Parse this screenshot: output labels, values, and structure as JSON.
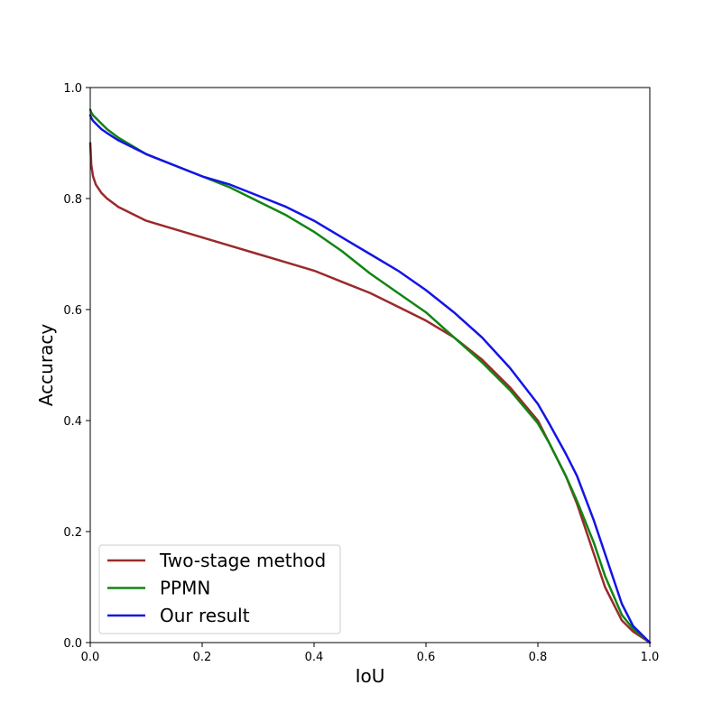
{
  "chart_data": {
    "type": "line",
    "title": "",
    "xlabel": "IoU",
    "ylabel": "Accuracy",
    "xlim": [
      0.0,
      1.0
    ],
    "ylim": [
      0.0,
      1.0
    ],
    "x_ticks": [
      "0.0",
      "0.2",
      "0.4",
      "0.6",
      "0.8",
      "1.0"
    ],
    "y_ticks": [
      "0.0",
      "0.2",
      "0.4",
      "0.6",
      "0.8",
      "1.0"
    ],
    "grid": false,
    "legend_position": "lower-left",
    "series": [
      {
        "name": "Two-stage method",
        "color": "#9b2a2a",
        "x": [
          0.0,
          0.002,
          0.005,
          0.01,
          0.02,
          0.03,
          0.05,
          0.07,
          0.1,
          0.15,
          0.2,
          0.25,
          0.3,
          0.35,
          0.4,
          0.45,
          0.5,
          0.55,
          0.6,
          0.65,
          0.7,
          0.75,
          0.8,
          0.82,
          0.85,
          0.87,
          0.9,
          0.92,
          0.95,
          0.97,
          1.0
        ],
        "y": [
          0.9,
          0.86,
          0.84,
          0.825,
          0.81,
          0.8,
          0.785,
          0.775,
          0.76,
          0.745,
          0.73,
          0.715,
          0.7,
          0.685,
          0.67,
          0.65,
          0.63,
          0.605,
          0.58,
          0.55,
          0.51,
          0.46,
          0.4,
          0.36,
          0.3,
          0.25,
          0.16,
          0.1,
          0.04,
          0.02,
          0.0
        ]
      },
      {
        "name": "PPMN",
        "color": "#118511",
        "x": [
          0.0,
          0.002,
          0.005,
          0.01,
          0.02,
          0.03,
          0.05,
          0.1,
          0.15,
          0.2,
          0.25,
          0.3,
          0.35,
          0.4,
          0.45,
          0.5,
          0.55,
          0.6,
          0.65,
          0.7,
          0.75,
          0.8,
          0.82,
          0.85,
          0.87,
          0.9,
          0.92,
          0.95,
          0.97,
          1.0
        ],
        "y": [
          0.96,
          0.955,
          0.95,
          0.945,
          0.935,
          0.925,
          0.91,
          0.88,
          0.86,
          0.84,
          0.82,
          0.795,
          0.77,
          0.74,
          0.705,
          0.665,
          0.63,
          0.595,
          0.55,
          0.505,
          0.455,
          0.395,
          0.36,
          0.3,
          0.255,
          0.18,
          0.12,
          0.05,
          0.025,
          0.0
        ]
      },
      {
        "name": "Our result",
        "color": "#1414e6",
        "x": [
          0.0,
          0.002,
          0.005,
          0.01,
          0.02,
          0.03,
          0.05,
          0.1,
          0.15,
          0.2,
          0.25,
          0.3,
          0.35,
          0.4,
          0.45,
          0.5,
          0.55,
          0.6,
          0.65,
          0.7,
          0.75,
          0.8,
          0.82,
          0.85,
          0.87,
          0.9,
          0.92,
          0.95,
          0.97,
          1.0
        ],
        "y": [
          0.95,
          0.945,
          0.94,
          0.935,
          0.925,
          0.918,
          0.905,
          0.88,
          0.86,
          0.84,
          0.825,
          0.805,
          0.785,
          0.76,
          0.73,
          0.7,
          0.67,
          0.635,
          0.595,
          0.55,
          0.495,
          0.43,
          0.395,
          0.34,
          0.3,
          0.22,
          0.16,
          0.07,
          0.03,
          0.0
        ]
      }
    ]
  }
}
